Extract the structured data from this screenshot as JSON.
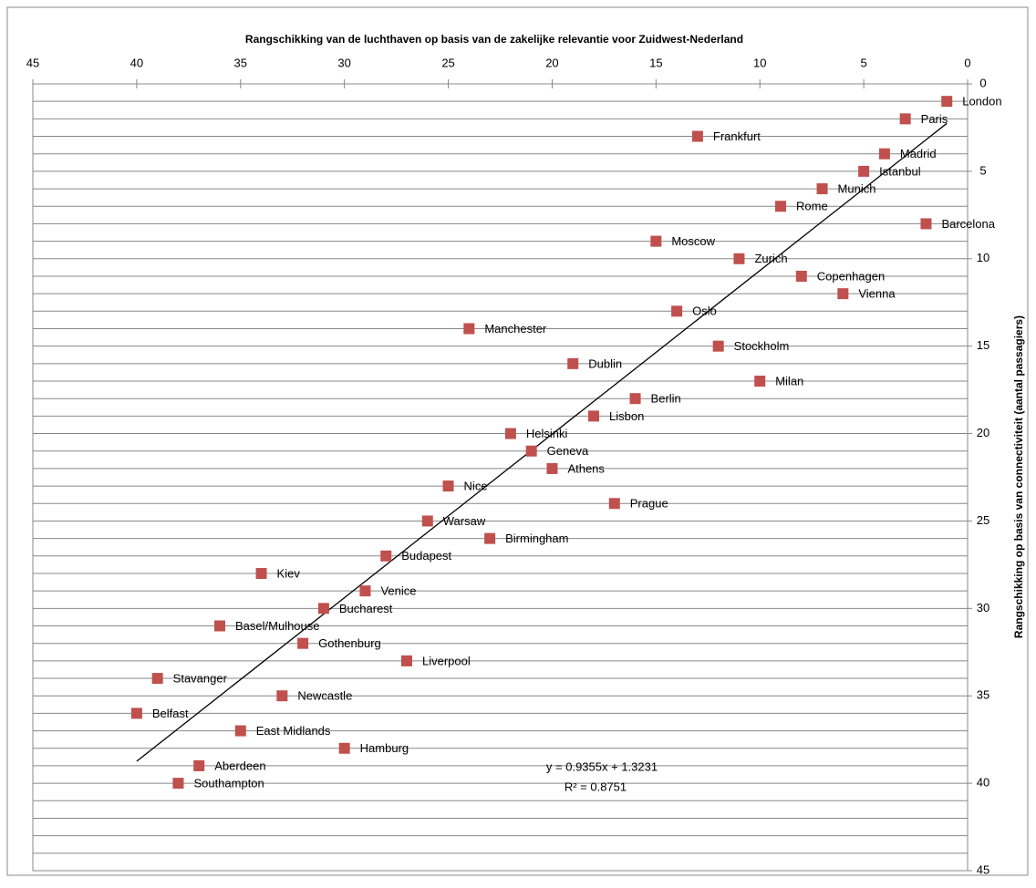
{
  "chart_data": {
    "type": "scatter",
    "title": "Rangschikking van de luchthaven op basis van de zakelijke relevantie voor Zuidwest-Nederland",
    "y_label": "Rangschikking op basis van connectiviteit (aantal passagiers)",
    "xlim": [
      45,
      0
    ],
    "xticks": [
      45,
      40,
      35,
      30,
      25,
      20,
      15,
      10,
      5,
      0
    ],
    "ylim": [
      0,
      45
    ],
    "yticks": [
      0,
      5,
      10,
      15,
      20,
      25,
      30,
      35,
      40,
      45
    ],
    "grid": true,
    "grid_step": 1,
    "color": "#c0504d",
    "point_labels": [
      "London",
      "Paris",
      "Frankfurt",
      "Madrid",
      "Istanbul",
      "Munich",
      "Rome",
      "Barcelona",
      "Moscow",
      "Zurich",
      "Copenhagen",
      "Vienna",
      "Oslo",
      "Manchester",
      "Stockholm",
      "Dublin",
      "Milan",
      "Berlin",
      "Lisbon",
      "Helsinki",
      "Geneva",
      "Athens",
      "Nice",
      "Prague",
      "Warsaw",
      "Birmingham",
      "Budapest",
      "Kiev",
      "Venice",
      "Bucharest",
      "Basel/Mulhouse",
      "Gothenburg",
      "Liverpool",
      "Stavanger",
      "Newcastle",
      "Belfast",
      "East Midlands",
      "Hamburg",
      "Aberdeen",
      "Southampton"
    ],
    "x": [
      1,
      3,
      13,
      4,
      5,
      7,
      9,
      2,
      15,
      11,
      8,
      6,
      14,
      24,
      12,
      19,
      10,
      16,
      18,
      22,
      21,
      20,
      25,
      17,
      26,
      23,
      28,
      34,
      29,
      31,
      36,
      32,
      27,
      39,
      33,
      40,
      35,
      30,
      37,
      38
    ],
    "values": [
      1,
      2,
      3,
      4,
      5,
      6,
      7,
      8,
      9,
      10,
      11,
      12,
      13,
      14,
      15,
      16,
      17,
      18,
      19,
      20,
      21,
      22,
      23,
      24,
      25,
      26,
      27,
      28,
      29,
      30,
      31,
      32,
      33,
      34,
      35,
      36,
      37,
      38,
      39,
      40
    ],
    "trendline": {
      "slope": 0.9355,
      "intercept": 1.3231,
      "equation": "y = 0.9355x + 1.3231",
      "r_squared": "R² = 0.8751"
    }
  }
}
